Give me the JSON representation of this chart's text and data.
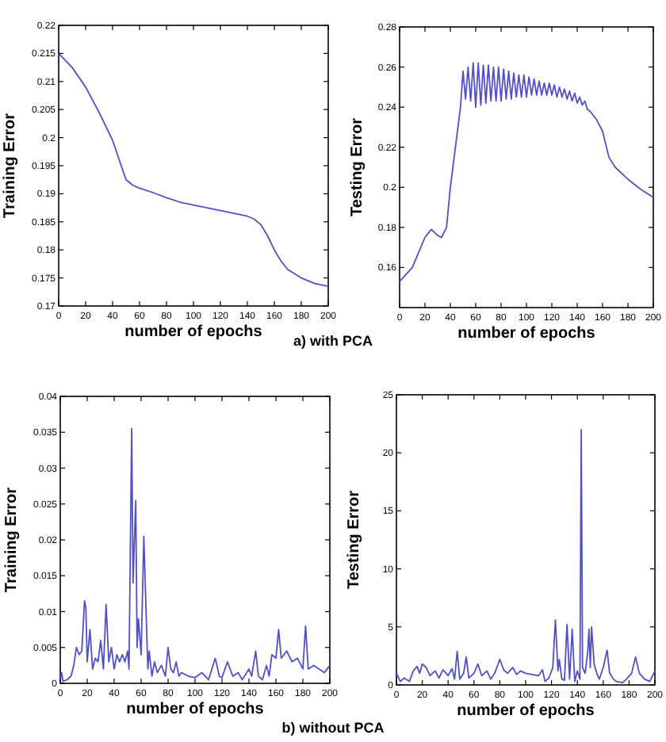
{
  "chart_data": [
    {
      "type": "line",
      "xlabel": "number of epochs",
      "ylabel": "Training Error",
      "annotations": [
        "a) with PCA"
      ],
      "xlim": [
        0,
        200
      ],
      "ylim": [
        0.17,
        0.22
      ],
      "xticks": [
        0,
        20,
        40,
        60,
        80,
        100,
        120,
        140,
        160,
        180,
        200
      ],
      "yticks": [
        0.17,
        0.175,
        0.18,
        0.185,
        0.19,
        0.195,
        0.2,
        0.205,
        0.21,
        0.215,
        0.22
      ],
      "series": [
        {
          "color": "#5050c8",
          "x": [
            0,
            10,
            20,
            30,
            40,
            45,
            50,
            55,
            60,
            70,
            80,
            90,
            100,
            110,
            120,
            130,
            140,
            145,
            150,
            155,
            160,
            165,
            170,
            180,
            190,
            200
          ],
          "values": [
            0.215,
            0.2125,
            0.209,
            0.2045,
            0.1995,
            0.196,
            0.1925,
            0.1915,
            0.191,
            0.1902,
            0.1893,
            0.1885,
            0.188,
            0.1875,
            0.187,
            0.1865,
            0.186,
            0.1855,
            0.1845,
            0.1825,
            0.18,
            0.178,
            0.1765,
            0.175,
            0.174,
            0.1735
          ]
        }
      ]
    },
    {
      "type": "line",
      "xlabel": "number of epochs",
      "ylabel": "Testing Error",
      "xlim": [
        0,
        200
      ],
      "ylim": [
        0.14,
        0.28
      ],
      "xticks": [
        0,
        20,
        40,
        60,
        80,
        100,
        120,
        140,
        160,
        180,
        200
      ],
      "yticks": [
        0.16,
        0.18,
        0.2,
        0.22,
        0.24,
        0.26,
        0.28
      ],
      "series": [
        {
          "color": "#5050c8",
          "x": [
            0,
            10,
            20,
            25,
            30,
            33,
            37,
            40,
            45,
            48,
            50,
            52,
            54,
            56,
            58,
            60,
            62,
            64,
            66,
            68,
            70,
            72,
            74,
            76,
            78,
            80,
            82,
            84,
            86,
            88,
            90,
            92,
            94,
            96,
            98,
            100,
            102,
            104,
            106,
            108,
            110,
            112,
            114,
            116,
            118,
            120,
            122,
            124,
            126,
            128,
            130,
            132,
            134,
            136,
            138,
            140,
            142,
            144,
            146,
            148,
            150,
            155,
            160,
            165,
            170,
            180,
            190,
            200
          ],
          "values": [
            0.153,
            0.16,
            0.175,
            0.179,
            0.176,
            0.175,
            0.18,
            0.2,
            0.225,
            0.24,
            0.258,
            0.244,
            0.26,
            0.243,
            0.262,
            0.24,
            0.262,
            0.241,
            0.261,
            0.242,
            0.261,
            0.243,
            0.26,
            0.243,
            0.26,
            0.243,
            0.259,
            0.244,
            0.258,
            0.244,
            0.257,
            0.245,
            0.256,
            0.245,
            0.256,
            0.245,
            0.255,
            0.246,
            0.254,
            0.246,
            0.253,
            0.246,
            0.252,
            0.246,
            0.252,
            0.246,
            0.251,
            0.245,
            0.25,
            0.245,
            0.249,
            0.244,
            0.248,
            0.243,
            0.247,
            0.242,
            0.245,
            0.241,
            0.243,
            0.239,
            0.238,
            0.234,
            0.228,
            0.215,
            0.21,
            0.204,
            0.199,
            0.195
          ]
        }
      ]
    },
    {
      "type": "line",
      "xlabel": "number of epochs",
      "ylabel": "Training Error",
      "annotations": [
        "b) without PCA"
      ],
      "xlim": [
        0,
        200
      ],
      "ylim": [
        0,
        0.04
      ],
      "xticks": [
        0,
        20,
        40,
        60,
        80,
        100,
        120,
        140,
        160,
        180,
        200
      ],
      "yticks": [
        0,
        0.005,
        0.01,
        0.015,
        0.02,
        0.025,
        0.03,
        0.035,
        0.04
      ],
      "series": [
        {
          "color": "#5050c8",
          "x": [
            0,
            1,
            2,
            5,
            8,
            10,
            12,
            14,
            16,
            18,
            19,
            20,
            22,
            24,
            26,
            28,
            30,
            32,
            34,
            36,
            38,
            40,
            42,
            44,
            46,
            48,
            50,
            51,
            53,
            54,
            56,
            57,
            58,
            60,
            62,
            64,
            65,
            66,
            68,
            70,
            72,
            75,
            78,
            80,
            82,
            84,
            86,
            88,
            90,
            95,
            100,
            105,
            110,
            115,
            118,
            120,
            124,
            128,
            132,
            135,
            140,
            142,
            145,
            147,
            150,
            153,
            155,
            157,
            160,
            162,
            164,
            168,
            172,
            176,
            180,
            182,
            184,
            188,
            192,
            196,
            200
          ],
          "values": [
            0.0005,
            0.0015,
            0.0003,
            0.0005,
            0.001,
            0.0025,
            0.005,
            0.004,
            0.0045,
            0.0115,
            0.0105,
            0.003,
            0.0075,
            0.002,
            0.0035,
            0.003,
            0.006,
            0.002,
            0.011,
            0.003,
            0.005,
            0.002,
            0.004,
            0.003,
            0.004,
            0.003,
            0.0045,
            0.002,
            0.0355,
            0.014,
            0.0255,
            0.005,
            0.009,
            0.004,
            0.0205,
            0.008,
            0.002,
            0.0045,
            0.001,
            0.003,
            0.0015,
            0.0025,
            0.001,
            0.005,
            0.002,
            0.0015,
            0.003,
            0.001,
            0.0015,
            0.001,
            0.0008,
            0.0015,
            0.0005,
            0.0035,
            0.001,
            0.0008,
            0.003,
            0.001,
            0.0015,
            0.0005,
            0.002,
            0.001,
            0.0045,
            0.001,
            0.0005,
            0.0025,
            0.001,
            0.004,
            0.0035,
            0.0075,
            0.0035,
            0.0045,
            0.003,
            0.0035,
            0.002,
            0.008,
            0.002,
            0.0025,
            0.002,
            0.0015,
            0.0025
          ]
        }
      ]
    },
    {
      "type": "line",
      "xlabel": "number of epochs",
      "ylabel": "Testing Error",
      "xlim": [
        0,
        200
      ],
      "ylim": [
        0,
        25
      ],
      "xticks": [
        0,
        20,
        40,
        60,
        80,
        100,
        120,
        140,
        160,
        180,
        200
      ],
      "yticks": [
        0,
        5,
        10,
        15,
        20,
        25
      ],
      "series": [
        {
          "color": "#5050c8",
          "x": [
            0,
            3,
            6,
            10,
            13,
            16,
            18,
            20,
            23,
            26,
            30,
            33,
            36,
            40,
            43,
            45,
            47,
            49,
            52,
            54,
            56,
            60,
            63,
            66,
            70,
            73,
            76,
            80,
            83,
            86,
            90,
            93,
            96,
            100,
            105,
            110,
            113,
            115,
            118,
            121,
            123,
            125,
            126,
            128,
            130,
            132,
            134,
            136,
            138,
            140,
            142,
            143,
            144,
            146,
            148,
            149,
            150,
            151,
            153,
            155,
            157,
            160,
            163,
            165,
            168,
            170,
            175,
            178,
            182,
            185,
            188,
            192,
            196,
            200
          ],
          "values": [
            1,
            0.3,
            0.6,
            0.3,
            1.2,
            1.6,
            1,
            1.8,
            1.5,
            0.8,
            1.2,
            0.6,
            1.3,
            0.8,
            1.4,
            0.5,
            2.9,
            0.5,
            1,
            2.4,
            0.6,
            1,
            1.8,
            0.8,
            1.2,
            0.5,
            1,
            2.2,
            1.3,
            1,
            1.5,
            0.9,
            1.2,
            1,
            0.9,
            0.8,
            1.3,
            0.3,
            0.6,
            1.5,
            5.6,
            1.2,
            2.2,
            0.5,
            0.4,
            5.2,
            0.5,
            4.8,
            0.3,
            1.2,
            0.5,
            22,
            1.5,
            1,
            2.8,
            4.8,
            1.5,
            5,
            1.8,
            1,
            0.5,
            1.5,
            3,
            1,
            0.5,
            0.3,
            0.2,
            0.5,
            1,
            2.4,
            1,
            0.5,
            0.3,
            1.2
          ]
        }
      ]
    }
  ]
}
